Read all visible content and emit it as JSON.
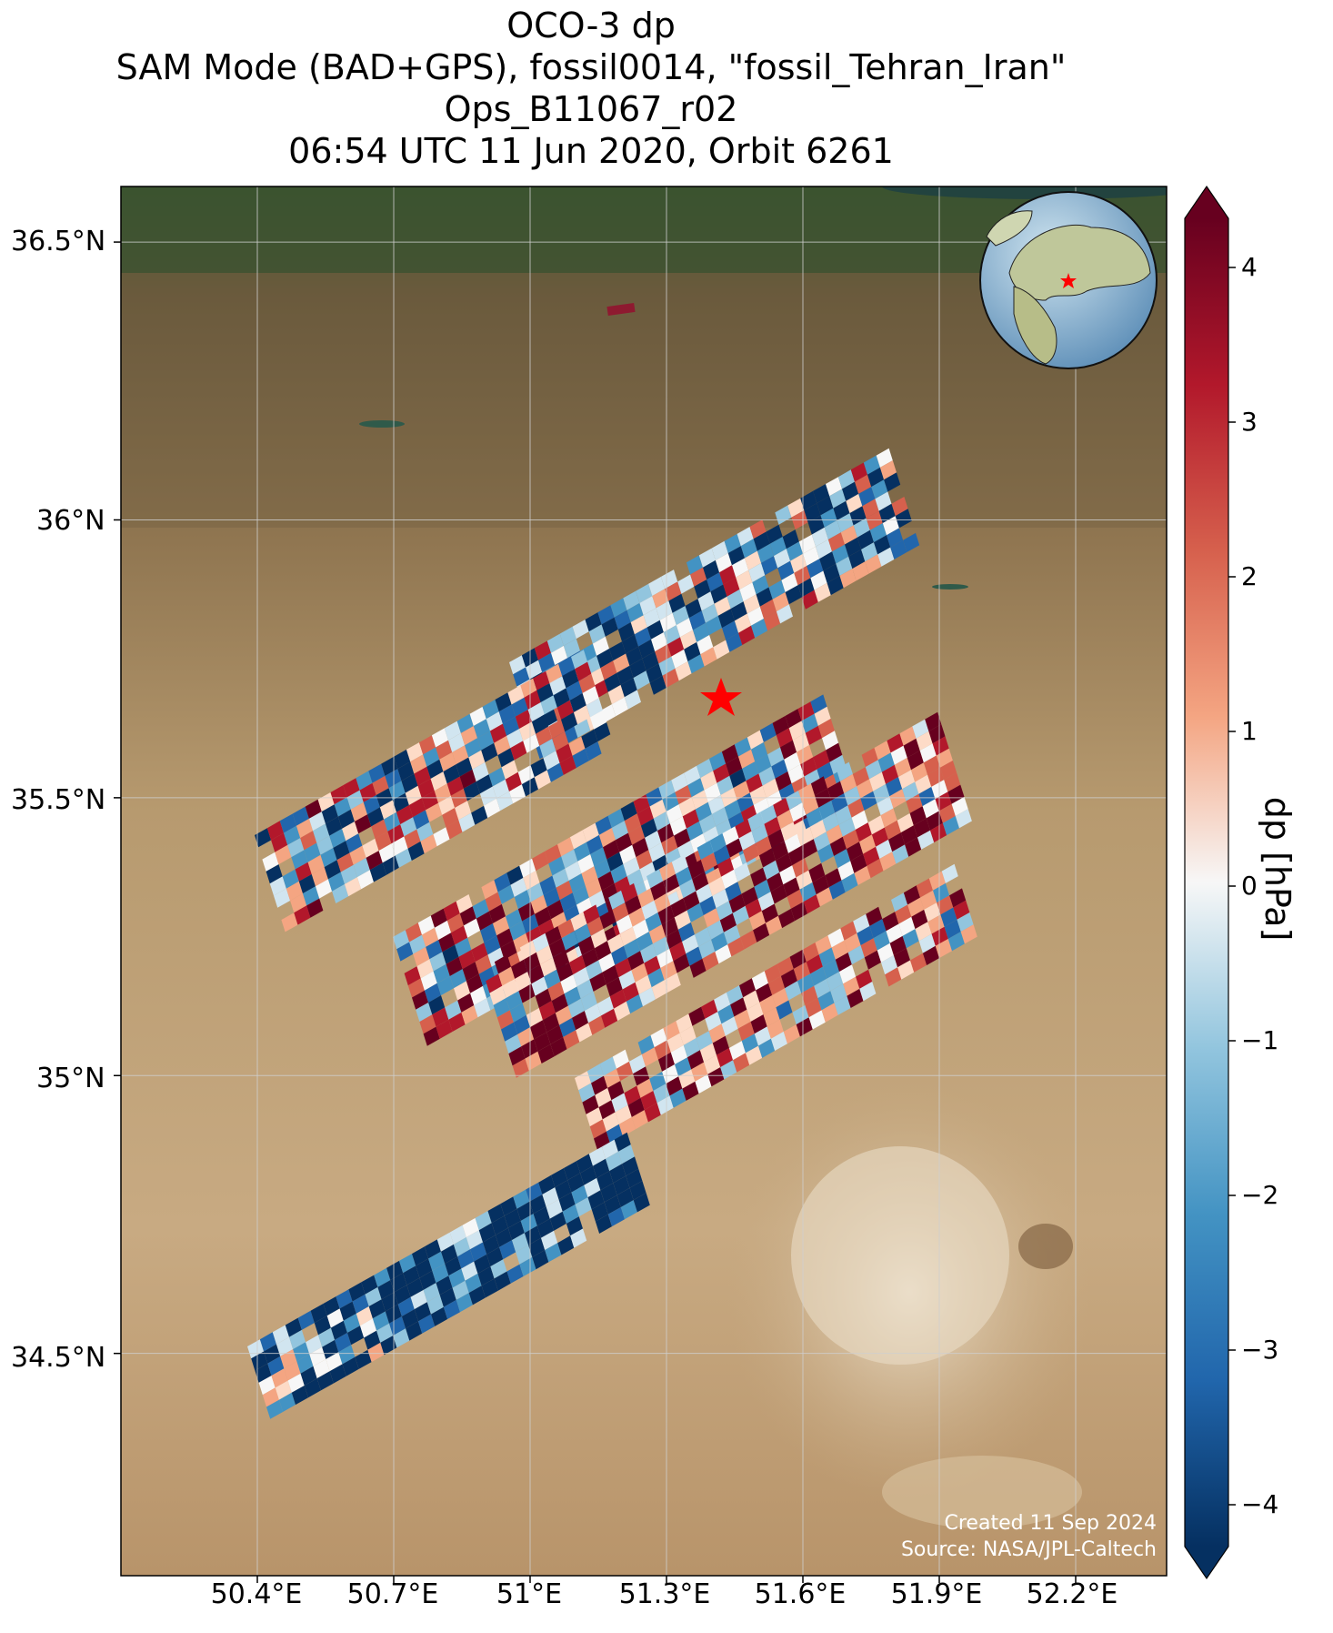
{
  "title": {
    "line1": "OCO-3 dp",
    "line2": "SAM Mode (BAD+GPS), fossil0014, \"fossil_Tehran_Iran\"",
    "line3": "Ops_B11067_r02",
    "line4": "06:54 UTC 11 Jun 2020, Orbit 6261"
  },
  "axes": {
    "y_ticks": [
      "36.5°N",
      "36°N",
      "35.5°N",
      "35°N",
      "34.5°N"
    ],
    "x_ticks": [
      "50.4°E",
      "50.7°E",
      "51°E",
      "51.3°E",
      "51.6°E",
      "51.9°E",
      "52.2°E"
    ]
  },
  "colorbar": {
    "label": "dp [hPa]",
    "ticks": [
      "4",
      "3",
      "2",
      "1",
      "0",
      "−1",
      "−2",
      "−3",
      "−4"
    ],
    "range": [
      -4,
      4
    ],
    "colormap": "RdBu_r",
    "extend": "both"
  },
  "target_marker": {
    "name": "fossil_Tehran_Iran",
    "lon": 51.42,
    "lat": 35.69,
    "color": "#ff0000",
    "symbol": "star"
  },
  "inset": {
    "type": "globe",
    "marker_color": "#ff0000"
  },
  "credits": {
    "created": "Created 11 Sep 2024",
    "source": "Source: NASA/JPL-Caltech"
  },
  "colors": {
    "dark_red": "#67001f",
    "red": "#d6604d",
    "light_red": "#f4a582",
    "white": "#f7f7f7",
    "light_blue": "#92c5de",
    "blue": "#4393c3",
    "dark_blue": "#053061"
  }
}
